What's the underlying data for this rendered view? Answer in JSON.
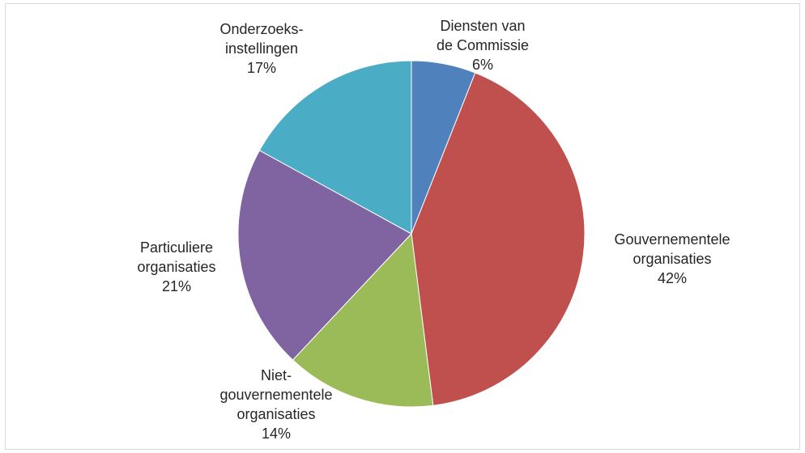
{
  "chart_data": {
    "type": "pie",
    "slices": [
      {
        "label_lines": [
          "Diensten van",
          "de Commissie"
        ],
        "percent_label": "6%",
        "value": 6,
        "color": "#4F81BD"
      },
      {
        "label_lines": [
          "Gouvernementele",
          "organisaties"
        ],
        "percent_label": "42%",
        "value": 42,
        "color": "#C0504D"
      },
      {
        "label_lines": [
          "Niet-",
          "gouvernementele",
          "organisaties"
        ],
        "percent_label": "14%",
        "value": 14,
        "color": "#9BBB59"
      },
      {
        "label_lines": [
          "Particuliere",
          "organisaties"
        ],
        "percent_label": "21%",
        "value": 21,
        "color": "#8064A2"
      },
      {
        "label_lines": [
          "Onderzoeks-",
          "instellingen"
        ],
        "percent_label": "17%",
        "value": 17,
        "color": "#4BACC6"
      }
    ],
    "start_angle": "12 o'clock",
    "direction": "clockwise",
    "legend": "none"
  }
}
